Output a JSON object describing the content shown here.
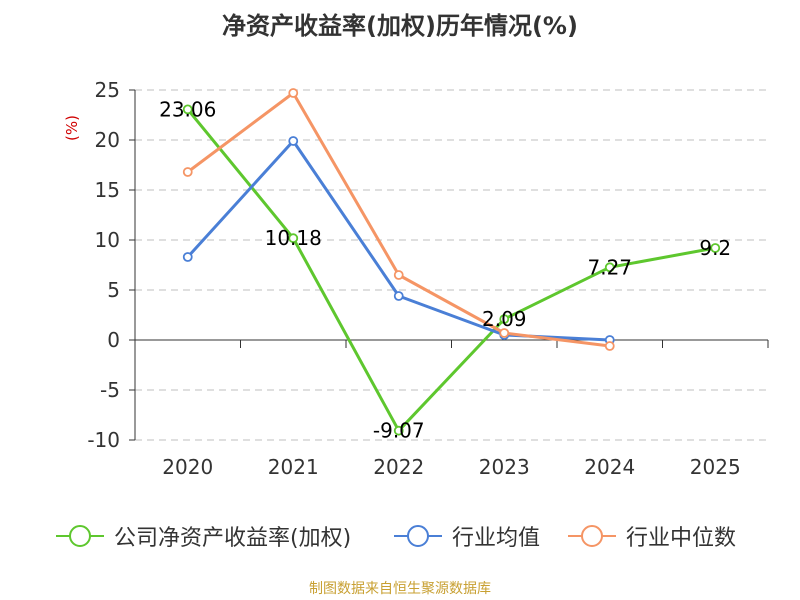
{
  "chart_data": {
    "type": "line",
    "title": "净资产收益率(加权)历年情况(%)",
    "ylabel": "(%)",
    "categories": [
      "2020",
      "2021",
      "2022",
      "2023",
      "2024",
      "2025"
    ],
    "ylim": [
      -10,
      25
    ],
    "yticks": [
      25,
      20,
      15,
      10,
      5,
      0,
      -5,
      -10
    ],
    "grid": true,
    "legend_position": "bottom",
    "series": [
      {
        "name": "公司净资产收益率(加权)",
        "color": "#5ec72e",
        "values": [
          23.06,
          10.18,
          -9.07,
          2.09,
          7.27,
          9.2
        ],
        "labels": [
          "23.06",
          "10.18",
          "-9.07",
          "2.09",
          "7.27",
          "9.2"
        ]
      },
      {
        "name": "行业均值",
        "color": "#4a7fd6",
        "values": [
          8.3,
          19.9,
          4.4,
          0.5,
          0.0,
          null
        ]
      },
      {
        "name": "行业中位数",
        "color": "#f59565",
        "values": [
          16.8,
          24.7,
          6.5,
          0.7,
          -0.6,
          null
        ]
      }
    ]
  },
  "source": "制图数据来自恒生聚源数据库"
}
